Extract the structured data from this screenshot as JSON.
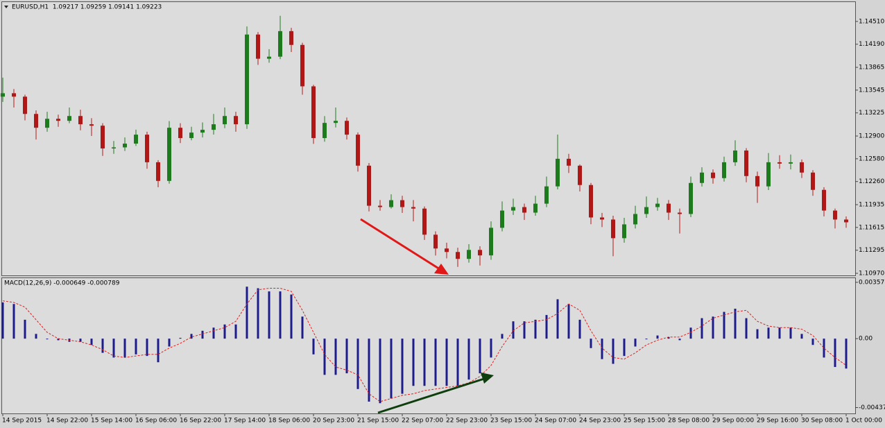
{
  "chart_data": [
    {
      "type": "candlestick",
      "title": "EURUSD,H1  1.09217 1.09259 1.09141 1.09223",
      "up_color": "#1d7a1d",
      "down_color": "#b01818",
      "categories": [
        "14 Sep 2015",
        null,
        null,
        null,
        "14 Sep 22:00",
        null,
        null,
        null,
        "15 Sep 14:00",
        null,
        null,
        null,
        "16 Sep 06:00",
        null,
        null,
        null,
        "16 Sep 22:00",
        null,
        null,
        null,
        "17 Sep 14:00",
        null,
        null,
        null,
        "18 Sep 06:00",
        null,
        null,
        null,
        "20 Sep 23:00",
        null,
        null,
        null,
        "21 Sep 15:00",
        null,
        null,
        null,
        "22 Sep 07:00",
        null,
        null,
        null,
        "22 Sep 23:00",
        null,
        null,
        null,
        "23 Sep 15:00",
        null,
        null,
        null,
        "24 Sep 07:00",
        null,
        null,
        null,
        "24 Sep 23:00",
        null,
        null,
        null,
        "25 Sep 15:00",
        null,
        null,
        null,
        "28 Sep 08:00",
        null,
        null,
        null,
        "29 Sep 00:00",
        null,
        null,
        null,
        "29 Sep 16:00",
        null,
        null,
        null,
        "30 Sep 08:00",
        null,
        null,
        null,
        "1 Oct 00:00"
      ],
      "open": [
        1.13453,
        1.13501,
        1.13453,
        1.1321,
        1.13016,
        1.13142,
        1.13113,
        1.13181,
        1.13065,
        1.13045,
        1.12725,
        1.1274,
        1.12793,
        1.12919,
        1.12531,
        1.12269,
        1.13016,
        1.12871,
        1.12948,
        1.12987,
        1.13065,
        1.13181,
        1.13065,
        1.14326,
        1.13986,
        1.14015,
        1.14374,
        1.1418,
        1.13598,
        1.12871,
        1.13084,
        1.13113,
        1.12919,
        1.12483,
        1.1192,
        1.11901,
        1.11998,
        1.11901,
        1.1188,
        1.11513,
        1.11319,
        1.1127,
        1.11173,
        1.11299,
        1.11222,
        1.1161,
        1.11852,
        1.11901,
        1.11823,
        1.11949,
        1.12192,
        1.1258,
        1.12483,
        1.12211,
        1.11755,
        1.11726,
        1.11464,
        1.11658,
        1.11804,
        1.11901,
        1.11949,
        1.11823,
        1.11804,
        1.1224,
        1.12386,
        1.12308,
        1.12531,
        1.12696,
        1.12337,
        1.12192,
        1.12531,
        1.12512,
        1.12531,
        1.12386,
        1.12143,
        1.11852,
        1.11726
      ],
      "high": [
        1.1372,
        1.1356,
        1.1348,
        1.1326,
        1.1324,
        1.132,
        1.133,
        1.1327,
        1.1315,
        1.1308,
        1.1283,
        1.1288,
        1.1299,
        1.1296,
        1.1256,
        1.1311,
        1.1308,
        1.1303,
        1.1309,
        1.1321,
        1.133,
        1.1324,
        1.1444,
        1.1436,
        1.1412,
        1.1459,
        1.1442,
        1.1421,
        1.1362,
        1.1318,
        1.133,
        1.1316,
        1.1295,
        1.1252,
        1.12,
        1.1208,
        1.1206,
        1.12,
        1.1191,
        1.1156,
        1.114,
        1.1133,
        1.1138,
        1.1135,
        1.117,
        1.1198,
        1.1202,
        1.1195,
        1.1206,
        1.1233,
        1.1292,
        1.1265,
        1.125,
        1.1224,
        1.1182,
        1.1178,
        1.1175,
        1.1192,
        1.1205,
        1.1203,
        1.12,
        1.1188,
        1.1233,
        1.1246,
        1.1243,
        1.1261,
        1.1284,
        1.1273,
        1.124,
        1.1266,
        1.1263,
        1.1264,
        1.1257,
        1.1242,
        1.1218,
        1.1188,
        1.1177
      ],
      "low": [
        1.1338,
        1.133,
        1.1312,
        1.1285,
        1.1296,
        1.1303,
        1.1308,
        1.1298,
        1.129,
        1.1262,
        1.1265,
        1.1269,
        1.1276,
        1.1244,
        1.1218,
        1.1223,
        1.128,
        1.1284,
        1.1288,
        1.1292,
        1.1301,
        1.1296,
        1.13,
        1.139,
        1.1393,
        1.1398,
        1.1408,
        1.1348,
        1.1279,
        1.1282,
        1.1302,
        1.1285,
        1.124,
        1.1184,
        1.1185,
        1.1188,
        1.1182,
        1.117,
        1.1144,
        1.1122,
        1.1118,
        1.1106,
        1.1112,
        1.1108,
        1.1116,
        1.1156,
        1.1179,
        1.1172,
        1.1178,
        1.119,
        1.1215,
        1.1238,
        1.1212,
        1.1166,
        1.1162,
        1.1121,
        1.114,
        1.116,
        1.1175,
        1.1185,
        1.1172,
        1.1153,
        1.1176,
        1.1219,
        1.1223,
        1.1226,
        1.1248,
        1.1225,
        1.1196,
        1.1214,
        1.1244,
        1.1243,
        1.1231,
        1.1206,
        1.1177,
        1.116,
        1.1161
      ],
      "close": [
        1.13501,
        1.13453,
        1.1321,
        1.13016,
        1.13142,
        1.13113,
        1.13181,
        1.13065,
        1.13045,
        1.12725,
        1.1274,
        1.12793,
        1.12919,
        1.12531,
        1.12269,
        1.13016,
        1.12871,
        1.12948,
        1.12987,
        1.13065,
        1.13181,
        1.13065,
        1.14326,
        1.13986,
        1.14015,
        1.14374,
        1.1418,
        1.13598,
        1.12871,
        1.13084,
        1.13113,
        1.12919,
        1.12483,
        1.1192,
        1.11901,
        1.11998,
        1.11901,
        1.1188,
        1.11513,
        1.11319,
        1.1127,
        1.11173,
        1.11299,
        1.11222,
        1.1161,
        1.11852,
        1.11901,
        1.11823,
        1.11949,
        1.12192,
        1.1258,
        1.12483,
        1.12211,
        1.11755,
        1.11726,
        1.11464,
        1.11658,
        1.11804,
        1.11901,
        1.11949,
        1.11823,
        1.11804,
        1.1224,
        1.12386,
        1.12308,
        1.12531,
        1.12696,
        1.12337,
        1.12192,
        1.12531,
        1.12512,
        1.12531,
        1.12386,
        1.12143,
        1.11852,
        1.11726,
        1.11687
      ],
      "ylim": [
        1.10941,
        1.14782
      ],
      "yticks": [
        {
          "value": 1.1451,
          "label": "1.14510"
        },
        {
          "value": 1.1419,
          "label": "1.14190"
        },
        1.13865,
        1.13545,
        1.13225,
        {
          "value": 1.129,
          "label": "1.12900"
        },
        {
          "value": 1.1258,
          "label": "1.12580"
        },
        {
          "value": 1.1226,
          "label": "1.12260"
        },
        1.11935,
        1.11615,
        1.11295,
        {
          "value": 1.1097,
          "label": "1.10970"
        }
      ]
    },
    {
      "type": "macd",
      "title": "MACD(12,26,9) -0.000649 -0.000789",
      "color": "#1c1c8a",
      "signal_color": "#e02020",
      "values": [
        0.0023,
        0.0022,
        0.0012,
        0.0003,
        -2e-05,
        -0.0001,
        -0.0002,
        -0.0002,
        -0.0004,
        -0.0009,
        -0.0012,
        -0.0012,
        -0.001,
        -0.0011,
        -0.0015,
        -0.0005,
        5e-05,
        0.0003,
        0.0005,
        0.0007,
        0.0009,
        0.0009,
        0.0033,
        0.0032,
        0.003,
        0.003,
        0.0028,
        0.0014,
        -0.001,
        -0.0023,
        -0.0023,
        -0.0022,
        -0.0032,
        -0.004,
        -0.0041,
        -0.0038,
        -0.0035,
        -0.003,
        -0.003,
        -0.003,
        -0.003,
        -0.003,
        -0.0026,
        -0.0022,
        -0.0012,
        0.0003,
        0.0011,
        0.0011,
        0.0012,
        0.0015,
        0.0025,
        0.0022,
        0.0012,
        -0.0006,
        -0.0013,
        -0.0016,
        -0.0011,
        -0.0005,
        -3e-05,
        0.0002,
        0.0001,
        -0.0001,
        0.0007,
        0.0013,
        0.0014,
        0.0017,
        0.0019,
        0.0013,
        0.0006,
        0.0007,
        0.0007,
        0.0007,
        0.0003,
        -0.0004,
        -0.0012,
        -0.0018,
        -0.0019
      ],
      "signal_values": [
        0.0024,
        0.0023,
        0.002,
        0.0012,
        0.0004,
        0.0,
        -0.0001,
        -0.0002,
        -0.0004,
        -0.0007,
        -0.0011,
        -0.0012,
        -0.0011,
        -0.001,
        -0.001,
        -0.0006,
        -0.0003,
        0.0001,
        0.0003,
        0.0005,
        0.0007,
        0.0011,
        0.0022,
        0.0031,
        0.0032,
        0.0032,
        0.003,
        0.0018,
        0.0004,
        -0.001,
        -0.0018,
        -0.002,
        -0.0023,
        -0.0035,
        -0.004,
        -0.0038,
        -0.0036,
        -0.0035,
        -0.0033,
        -0.0032,
        -0.0031,
        -0.003,
        -0.0028,
        -0.0024,
        -0.0017,
        -0.0005,
        0.0005,
        0.001,
        0.0011,
        0.0012,
        0.0016,
        0.0022,
        0.0018,
        0.0005,
        -0.0006,
        -0.0012,
        -0.0013,
        -0.0009,
        -0.0004,
        -0.0001,
        0.0001,
        0.0001,
        0.0004,
        0.0008,
        0.0013,
        0.0015,
        0.0017,
        0.0018,
        0.0011,
        0.0008,
        0.0007,
        0.0007,
        0.0006,
        0.0002,
        -0.0006,
        -0.0012,
        -0.0017
      ],
      "ylim": [
        -0.00475,
        0.00384
      ],
      "yticks": [
        0.003577,
        {
          "value": 0,
          "label": "0.00"
        },
        -0.004377
      ]
    }
  ]
}
